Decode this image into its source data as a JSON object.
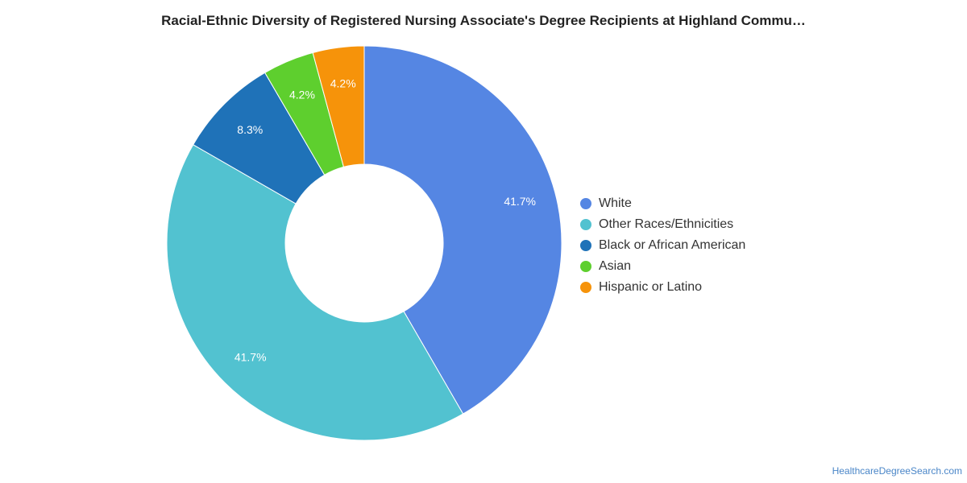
{
  "chart_data": {
    "type": "pie",
    "title": "Racial-Ethnic Diversity of Registered Nursing Associate's Degree Recipients at Highland Commu…",
    "donut": true,
    "legend_position": "right",
    "slices": [
      {
        "name": "White",
        "value": 41.7,
        "label": "41.7%",
        "color": "#5586e3"
      },
      {
        "name": "Other Races/Ethnicities",
        "value": 41.7,
        "label": "41.7%",
        "color": "#52c2d0"
      },
      {
        "name": "Black or African American",
        "value": 8.3,
        "label": "8.3%",
        "color": "#1f72b8"
      },
      {
        "name": "Asian",
        "value": 4.2,
        "label": "4.2%",
        "color": "#5ecf2e"
      },
      {
        "name": "Hispanic or Latino",
        "value": 4.2,
        "label": "4.2%",
        "color": "#f6930a"
      }
    ]
  },
  "footer": {
    "credit": "HealthcareDegreeSearch.com"
  }
}
